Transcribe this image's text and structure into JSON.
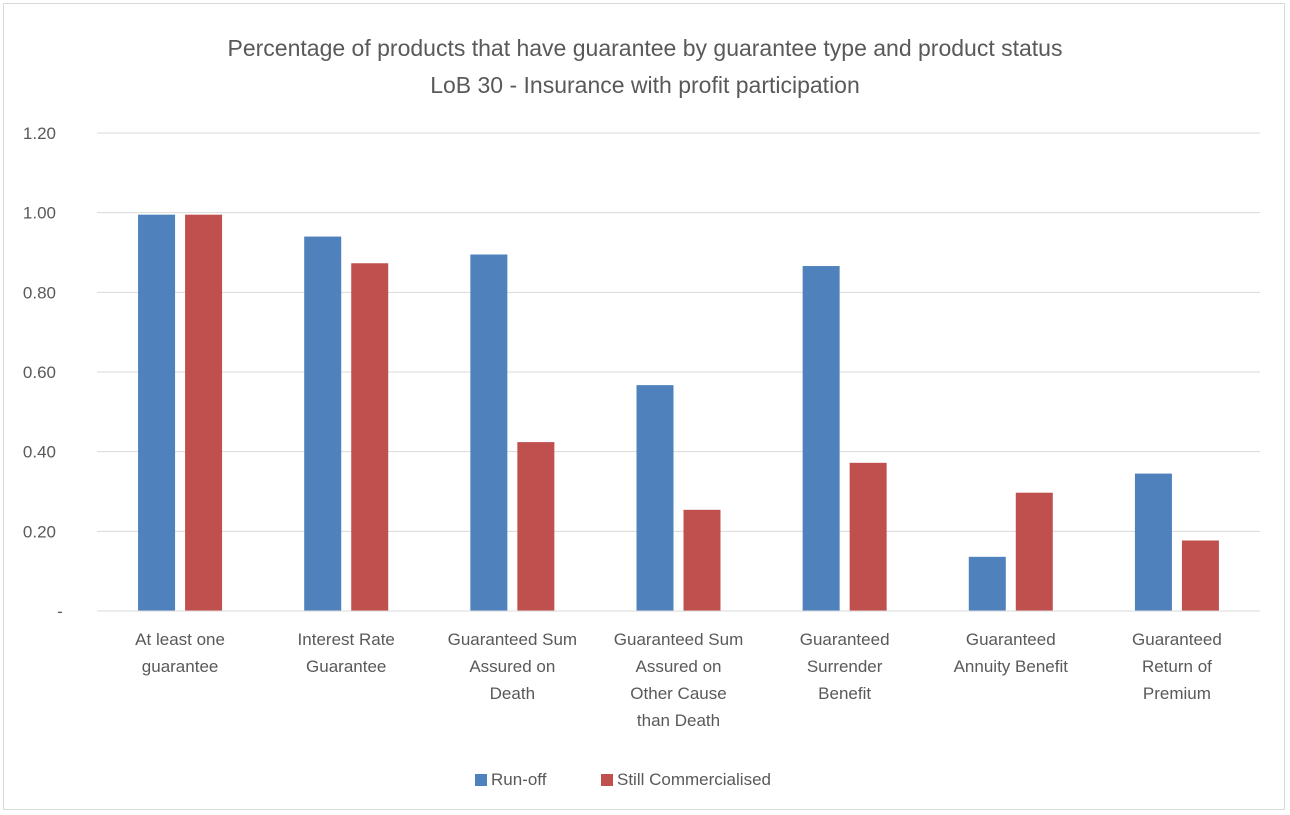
{
  "chart_data": {
    "type": "bar",
    "title": [
      "Percentage of products that have guarantee by guarantee type and product status",
      "LoB 30 - Insurance with profit participation"
    ],
    "categories": [
      [
        "At least one",
        "guarantee"
      ],
      [
        "Interest Rate",
        "Guarantee"
      ],
      [
        "Guaranteed Sum",
        "Assured on",
        "Death"
      ],
      [
        "Guaranteed Sum",
        "Assured on",
        "Other Cause",
        "than Death"
      ],
      [
        "Guaranteed",
        "Surrender",
        "Benefit"
      ],
      [
        "Guaranteed",
        "Annuity Benefit"
      ],
      [
        "Guaranteed",
        "Return of",
        "Premium"
      ]
    ],
    "series": [
      {
        "name": "Run-off",
        "color": "#4f81bd",
        "values": [
          0.995,
          0.94,
          0.895,
          0.567,
          0.866,
          0.136,
          0.345
        ]
      },
      {
        "name": "Still Commercialised",
        "color": "#c0504d",
        "values": [
          0.995,
          0.873,
          0.424,
          0.254,
          0.372,
          0.297,
          0.177
        ]
      }
    ],
    "ylim": [
      0,
      1.2
    ],
    "yticks": [
      0,
      0.2,
      0.4,
      0.6,
      0.8,
      1.0,
      1.2
    ],
    "ytick_labels": [
      "-",
      "0.20",
      "0.40",
      "0.60",
      "0.80",
      "1.00",
      "1.20"
    ],
    "grid": true,
    "legend_position": "bottom"
  }
}
